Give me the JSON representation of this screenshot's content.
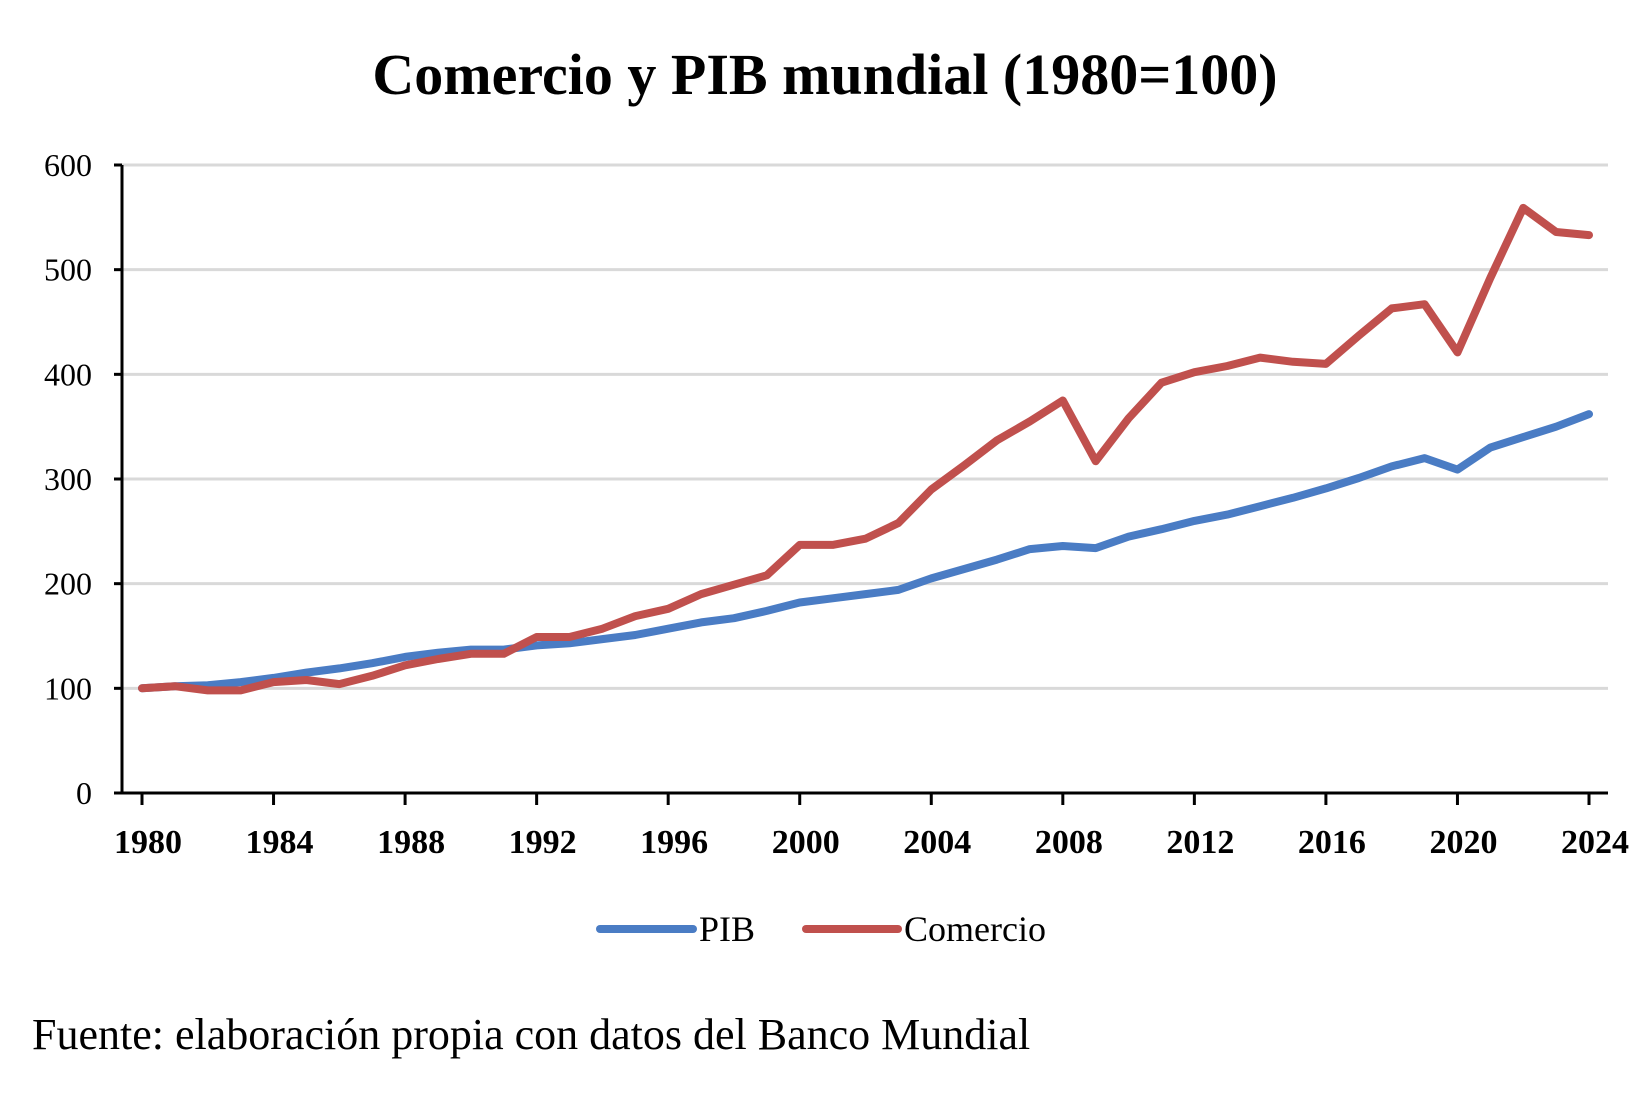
{
  "chart_data": {
    "type": "line",
    "title": "Comercio y PIB mundial (1980=100)",
    "xlabel": "",
    "ylabel": "",
    "ylim": [
      0,
      600
    ],
    "xlim": [
      1980,
      2024
    ],
    "yticks": [
      "0",
      "100",
      "200",
      "300",
      "400",
      "500",
      "600"
    ],
    "xticks": [
      "1980",
      "1984",
      "1988",
      "1992",
      "1996",
      "2000",
      "2004",
      "2008",
      "2012",
      "2016",
      "2020",
      "2024"
    ],
    "grid": true,
    "legend_position": "bottom",
    "x": [
      1980,
      1981,
      1982,
      1983,
      1984,
      1985,
      1986,
      1987,
      1988,
      1989,
      1990,
      1991,
      1992,
      1993,
      1994,
      1995,
      1996,
      1997,
      1998,
      1999,
      2000,
      2001,
      2002,
      2003,
      2004,
      2005,
      2006,
      2007,
      2008,
      2009,
      2010,
      2011,
      2012,
      2013,
      2014,
      2015,
      2016,
      2017,
      2018,
      2019,
      2020,
      2021,
      2022,
      2023,
      2024
    ],
    "series": [
      {
        "name": "PIB",
        "color": "#4a7cc4",
        "values": [
          100,
          102,
          103,
          106,
          110,
          115,
          119,
          124,
          130,
          134,
          137,
          137,
          141,
          143,
          147,
          151,
          157,
          163,
          167,
          174,
          182,
          186,
          190,
          194,
          205,
          214,
          223,
          233,
          236,
          234,
          245,
          252,
          260,
          266,
          274,
          282,
          291,
          301,
          312,
          320,
          309,
          330,
          340,
          350,
          362
        ]
      },
      {
        "name": "Comercio",
        "color": "#c0504d",
        "values": [
          100,
          102,
          98,
          98,
          106,
          108,
          104,
          112,
          122,
          128,
          133,
          133,
          149,
          149,
          157,
          169,
          176,
          190,
          199,
          208,
          237,
          237,
          243,
          258,
          290,
          313,
          337,
          355,
          375,
          317,
          358,
          392,
          402,
          408,
          416,
          412,
          410,
          437,
          463,
          467,
          421,
          492,
          559,
          536,
          533
        ]
      }
    ]
  },
  "source_text": "Fuente: elaboración propia con datos del Banco Mundial"
}
